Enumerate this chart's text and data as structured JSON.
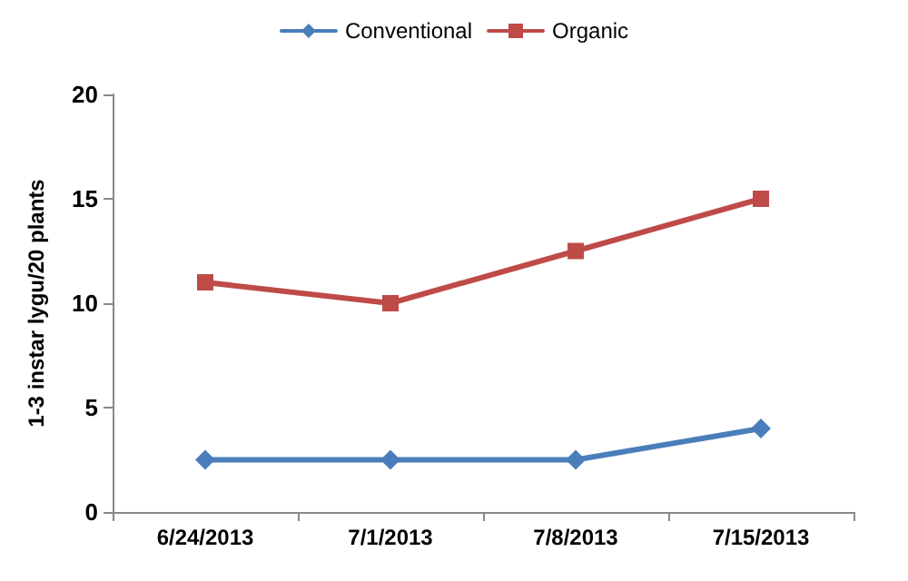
{
  "chart_data": {
    "type": "line",
    "ylabel": "1-3 instar lygu/20 plants",
    "categories": [
      "6/24/2013",
      "7/1/2013",
      "7/8/2013",
      "7/15/2013"
    ],
    "series": [
      {
        "name": "Conventional",
        "color": "#4a7ebb",
        "marker": "diamond",
        "values": [
          2.5,
          2.5,
          2.5,
          4
        ]
      },
      {
        "name": "Organic",
        "color": "#be4b48",
        "marker": "square",
        "values": [
          11,
          10,
          12.5,
          15
        ]
      }
    ],
    "ylim": [
      0,
      20
    ],
    "yticks": [
      0,
      5,
      10,
      15,
      20
    ],
    "grid": false,
    "legend": "top",
    "line_style": "solid"
  }
}
